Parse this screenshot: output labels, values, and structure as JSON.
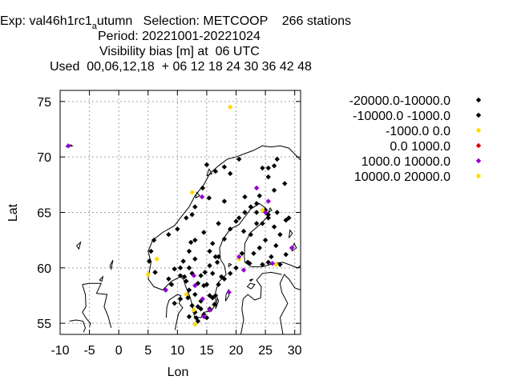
{
  "title": {
    "exp_prefix": "Exp: val46h1rc1",
    "exp_subscript": "a",
    "exp_rest": "utumn   Selection: METCOOP    266 stations",
    "period": "Period: 20221001-20221024",
    "parameter": "Visibility bias [m] at  06 UTC",
    "used": "Used  00,06,12,18  + 06 12 18 24 30 36 42 48"
  },
  "chart_data": {
    "type": "scatter",
    "xlabel": "Lon",
    "ylabel": "Lat",
    "xlim": [
      -10,
      31
    ],
    "ylim": [
      54,
      76
    ],
    "xticks": [
      -10,
      -5,
      0,
      5,
      10,
      15,
      20,
      25,
      30
    ],
    "yticks": [
      55,
      60,
      65,
      70,
      75
    ],
    "grid": true,
    "legend_position": "outside-right",
    "series": [
      {
        "name": "-20000.0-10000.0",
        "color": "#000000",
        "marker": "diamond",
        "points": [
          [
            26.5,
            69.2
          ],
          [
            27.0,
            69.8
          ],
          [
            25.5,
            69.0
          ],
          [
            24.5,
            69.0
          ],
          [
            20.5,
            69.8
          ],
          [
            19.0,
            68.5
          ],
          [
            25.5,
            68.2
          ],
          [
            28.3,
            67.6
          ],
          [
            26.5,
            67.0
          ],
          [
            21.5,
            66.4
          ],
          [
            20.0,
            64.2
          ],
          [
            18.0,
            62.6
          ],
          [
            16.5,
            61.0
          ],
          [
            15.5,
            60.2
          ],
          [
            14.5,
            58.4
          ],
          [
            16.0,
            57.3
          ],
          [
            13.5,
            56.5
          ],
          [
            10.5,
            60.0
          ],
          [
            8.0,
            58.0
          ],
          [
            13.2,
            55.5
          ],
          [
            24.5,
            64.0
          ],
          [
            29.0,
            64.5
          ],
          [
            23.5,
            65.0
          ],
          [
            17.5,
            59.2
          ]
        ]
      },
      {
        "name": "-10000.0 -1000.0",
        "color": "#000000",
        "marker": "diamond",
        "points": [
          [
            15.0,
            69.3
          ],
          [
            16.5,
            68.7
          ],
          [
            18.0,
            69.1
          ],
          [
            14.3,
            67.2
          ],
          [
            15.4,
            66.3
          ],
          [
            13.0,
            65.5
          ],
          [
            12.5,
            64.8
          ],
          [
            11.5,
            64.5
          ],
          [
            10.0,
            63.5
          ],
          [
            8.5,
            63.0
          ],
          [
            6.0,
            62.5
          ],
          [
            5.5,
            61.5
          ],
          [
            5.2,
            60.6
          ],
          [
            6.2,
            59.6
          ],
          [
            8.5,
            59.0
          ],
          [
            9.5,
            59.9
          ],
          [
            12.0,
            60.0
          ],
          [
            11.0,
            60.6
          ],
          [
            12.0,
            61.5
          ],
          [
            13.0,
            62.5
          ],
          [
            14.5,
            63.2
          ],
          [
            16.0,
            62.2
          ],
          [
            17.0,
            61.0
          ],
          [
            14.0,
            59.3
          ],
          [
            13.5,
            58.6
          ],
          [
            12.0,
            58.0
          ],
          [
            11.8,
            57.3
          ],
          [
            12.5,
            56.6
          ],
          [
            13.0,
            56.0
          ],
          [
            14.5,
            55.8
          ],
          [
            15.5,
            56.3
          ],
          [
            16.5,
            57.5
          ],
          [
            17.0,
            58.5
          ],
          [
            18.0,
            59.0
          ],
          [
            19.0,
            59.5
          ],
          [
            16.0,
            59.5
          ],
          [
            15.0,
            58.5
          ],
          [
            15.5,
            57.5
          ],
          [
            14.0,
            57.0
          ],
          [
            13.0,
            57.6
          ],
          [
            11.5,
            58.8
          ],
          [
            10.5,
            59.3
          ],
          [
            19.0,
            63.5
          ],
          [
            20.5,
            64.5
          ],
          [
            21.5,
            65.0
          ],
          [
            22.5,
            65.5
          ],
          [
            23.5,
            65.8
          ],
          [
            25.0,
            65.2
          ],
          [
            25.5,
            64.5
          ],
          [
            26.5,
            63.7
          ],
          [
            27.5,
            63.0
          ],
          [
            25.0,
            62.5
          ],
          [
            26.8,
            62.0
          ],
          [
            24.0,
            61.8
          ],
          [
            23.0,
            61.3
          ],
          [
            22.0,
            60.5
          ],
          [
            24.5,
            60.3
          ],
          [
            25.5,
            60.5
          ],
          [
            27.5,
            60.3
          ],
          [
            28.5,
            61.2
          ],
          [
            22.3,
            60.4
          ],
          [
            21.0,
            61.3
          ],
          [
            22.5,
            63.0
          ],
          [
            23.5,
            64.0
          ],
          [
            27.0,
            65.0
          ],
          [
            28.5,
            64.3
          ],
          [
            18.0,
            66.0
          ],
          [
            17.0,
            64.0
          ],
          [
            24.0,
            66.5
          ],
          [
            25.5,
            64.8
          ],
          [
            26.0,
            61.0
          ],
          [
            20.0,
            60.0
          ],
          [
            21.3,
            63.3
          ],
          [
            12.5,
            59.5
          ],
          [
            13.0,
            60.8
          ],
          [
            16.8,
            60.5
          ],
          [
            14.7,
            59.6
          ],
          [
            15.5,
            61.5
          ],
          [
            12.3,
            62.3
          ],
          [
            11.2,
            59.2
          ],
          [
            16.3,
            56.7
          ],
          [
            14.0,
            56.3
          ],
          [
            12.0,
            55.6
          ],
          [
            10.5,
            57.2
          ],
          [
            9.5,
            56.8
          ],
          [
            15.0,
            55.5
          ],
          [
            13.5,
            55.2
          ],
          [
            9.0,
            58.5
          ]
        ]
      },
      {
        "name": "-1000.0 0.0",
        "color": "#ffd700",
        "marker": "diamond",
        "points": [
          [
            19.0,
            74.5
          ],
          [
            12.5,
            66.8
          ],
          [
            6.5,
            60.8
          ],
          [
            5.0,
            59.4
          ],
          [
            11.5,
            57.6
          ],
          [
            12.8,
            56.2
          ],
          [
            20.5,
            60.8
          ],
          [
            24.5,
            65.2
          ],
          [
            26.8,
            60.3
          ],
          [
            13.0,
            54.9
          ]
        ]
      },
      {
        "name": "0.0 1000.0",
        "color": "#dd0000",
        "marker": "diamond",
        "points": []
      },
      {
        "name": "1000.0 10000.0",
        "color": "#9400d3",
        "marker": "diamond",
        "points": [
          [
            -8.6,
            71.0
          ],
          [
            14.2,
            66.4
          ],
          [
            23.5,
            67.2
          ],
          [
            25.5,
            66.0
          ],
          [
            25.0,
            65.0
          ],
          [
            20.5,
            61.0
          ],
          [
            21.3,
            59.8
          ],
          [
            29.5,
            61.8
          ],
          [
            26.2,
            60.4
          ],
          [
            8.0,
            58.0
          ],
          [
            13.0,
            58.4
          ],
          [
            15.5,
            56.2
          ],
          [
            14.5,
            55.6
          ],
          [
            18.8,
            57.8
          ],
          [
            12.8,
            59.3
          ],
          [
            14.3,
            57.2
          ]
        ]
      },
      {
        "name": "10000.0 20000.0",
        "color": "#ffd700",
        "marker": "diamond",
        "points": []
      }
    ]
  }
}
